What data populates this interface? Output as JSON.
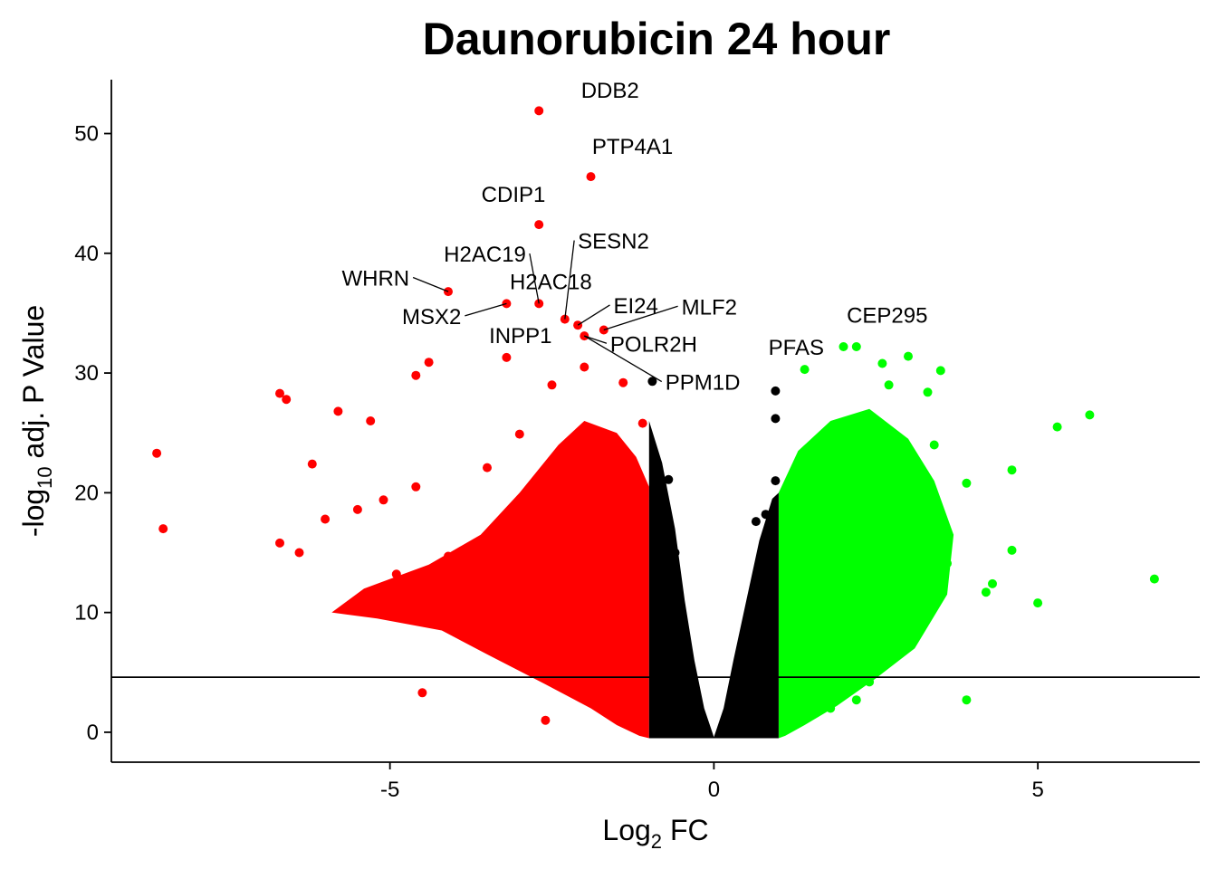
{
  "chart_data": {
    "type": "scatter",
    "title": "Daunorubicin 24 hour",
    "xlabel": {
      "base": "Log",
      "sub": "2",
      "rest": " FC"
    },
    "ylabel": {
      "pre": "-log",
      "sub": "10",
      "rest": " adj. P Value"
    },
    "xlim": [
      -9.3,
      7.5
    ],
    "ylim": [
      -2.5,
      54.5
    ],
    "x_ticks": [
      -5,
      0,
      5
    ],
    "x_tick_labels": [
      "-5",
      "0",
      "5"
    ],
    "y_ticks": [
      0,
      10,
      20,
      30,
      40,
      50
    ],
    "y_tick_labels": [
      "0",
      "10",
      "20",
      "30",
      "40",
      "50"
    ],
    "threshold_line_y": 4.6,
    "fc_thresholds": [
      -1,
      1
    ],
    "grid": false,
    "legend": "none",
    "colors": {
      "down": "#ff0000",
      "up": "#00ff00",
      "ns": "#000000"
    },
    "series": [
      {
        "name": "down",
        "color": "#ff0000",
        "points": [
          [
            -2.7,
            51.9
          ],
          [
            -1.9,
            46.4
          ],
          [
            -2.7,
            42.4
          ],
          [
            -4.1,
            36.8
          ],
          [
            -3.2,
            35.8
          ],
          [
            -2.7,
            35.8
          ],
          [
            -2.3,
            34.5
          ],
          [
            -2.1,
            34.0
          ],
          [
            -1.7,
            33.6
          ],
          [
            -2.0,
            33.1
          ],
          [
            -3.2,
            31.3
          ],
          [
            -8.6,
            23.3
          ],
          [
            -8.5,
            17.0
          ],
          [
            -6.7,
            28.3
          ],
          [
            -6.6,
            27.8
          ],
          [
            -6.7,
            15.8
          ],
          [
            -6.4,
            15.0
          ],
          [
            -6.2,
            22.4
          ],
          [
            -5.8,
            26.8
          ],
          [
            -5.3,
            26.0
          ],
          [
            -4.4,
            30.9
          ],
          [
            -4.6,
            29.8
          ],
          [
            -4.5,
            3.3
          ],
          [
            -2.0,
            30.5
          ],
          [
            -2.5,
            29.0
          ],
          [
            -1.4,
            29.2
          ],
          [
            -1.1,
            25.8
          ],
          [
            -3.5,
            22.1
          ],
          [
            -3.0,
            24.9
          ],
          [
            -4.6,
            20.5
          ],
          [
            -5.1,
            19.4
          ],
          [
            -5.5,
            18.6
          ],
          [
            -6.0,
            17.8
          ],
          [
            -4.9,
            13.2
          ],
          [
            -4.1,
            14.7
          ],
          [
            -3.6,
            11.3
          ],
          [
            -2.9,
            7.2
          ],
          [
            -2.3,
            5.0
          ],
          [
            -1.3,
            3.2
          ],
          [
            -1.6,
            1.8
          ],
          [
            -2.6,
            1.0
          ]
        ]
      },
      {
        "name": "up",
        "color": "#00ff00",
        "points": [
          [
            1.4,
            30.3
          ],
          [
            2.0,
            32.2
          ],
          [
            2.2,
            32.2
          ],
          [
            2.6,
            30.8
          ],
          [
            3.0,
            31.4
          ],
          [
            3.5,
            30.2
          ],
          [
            3.3,
            28.4
          ],
          [
            2.7,
            29.0
          ],
          [
            3.4,
            24.0
          ],
          [
            3.9,
            20.8
          ],
          [
            4.6,
            21.9
          ],
          [
            5.3,
            25.5
          ],
          [
            5.8,
            26.5
          ],
          [
            6.8,
            12.8
          ],
          [
            5.0,
            10.8
          ],
          [
            4.6,
            15.2
          ],
          [
            4.3,
            12.4
          ],
          [
            4.2,
            11.7
          ],
          [
            3.9,
            2.7
          ],
          [
            2.4,
            4.2
          ],
          [
            3.6,
            14.1
          ],
          [
            3.0,
            17.6
          ],
          [
            1.8,
            2.0
          ],
          [
            2.2,
            2.7
          ],
          [
            1.2,
            2.0
          ]
        ]
      },
      {
        "name": "ns",
        "color": "#000000",
        "points": [
          [
            -0.95,
            29.3
          ],
          [
            0.95,
            28.5
          ],
          [
            0.95,
            26.2
          ],
          [
            0.95,
            21.0
          ],
          [
            -0.7,
            21.1
          ],
          [
            -0.8,
            20.2
          ],
          [
            0.8,
            18.2
          ],
          [
            0.65,
            17.6
          ],
          [
            -0.6,
            15.0
          ]
        ]
      }
    ],
    "labels": [
      {
        "text": "DDB2",
        "point": [
          -2.7,
          51.9
        ],
        "label_at": [
          -2.05,
          53.0
        ],
        "anchor": "start"
      },
      {
        "text": "PTP4A1",
        "point": [
          -1.9,
          46.4
        ],
        "label_at": [
          -1.88,
          48.3
        ],
        "anchor": "start"
      },
      {
        "text": "CDIP1",
        "point": [
          -2.7,
          42.4
        ],
        "label_at": [
          -2.6,
          44.3
        ],
        "anchor": "end"
      },
      {
        "text": "SESN2",
        "point": [
          -2.3,
          34.5
        ],
        "label_at": [
          -2.1,
          40.4
        ],
        "anchor": "start",
        "leader": true
      },
      {
        "text": "H2AC19",
        "point": [
          -2.7,
          35.8
        ],
        "label_at": [
          -2.9,
          39.3
        ],
        "anchor": "end",
        "leader": true
      },
      {
        "text": "WHRN",
        "point": [
          -4.1,
          36.8
        ],
        "label_at": [
          -4.7,
          37.3
        ],
        "anchor": "end",
        "leader": true
      },
      {
        "text": "H2AC18",
        "point": [
          -2.7,
          35.8
        ],
        "label_at": [
          -3.15,
          37.0
        ],
        "anchor": "start"
      },
      {
        "text": "MSX2",
        "point": [
          -3.2,
          35.8
        ],
        "label_at": [
          -3.9,
          34.1
        ],
        "anchor": "end",
        "leader": true
      },
      {
        "text": "EI24",
        "point": [
          -2.1,
          34.0
        ],
        "label_at": [
          -1.55,
          35.0
        ],
        "anchor": "start",
        "leader": true
      },
      {
        "text": "MLF2",
        "point": [
          -1.7,
          33.6
        ],
        "label_at": [
          -0.5,
          34.9
        ],
        "anchor": "start",
        "leader": true
      },
      {
        "text": "INPP1",
        "point": [
          -3.2,
          31.3
        ],
        "label_at": [
          -2.5,
          32.5
        ],
        "anchor": "end"
      },
      {
        "text": "POLR2H",
        "point": [
          -2.0,
          33.1
        ],
        "label_at": [
          -1.6,
          31.8
        ],
        "anchor": "start",
        "leader": true
      },
      {
        "text": "PPM1D",
        "point": [
          -2.0,
          33.1
        ],
        "label_at": [
          -0.75,
          28.6
        ],
        "anchor": "start",
        "leader": true
      },
      {
        "text": "PFAS",
        "point": [
          1.4,
          30.3
        ],
        "label_at": [
          1.7,
          31.5
        ],
        "anchor": "end"
      },
      {
        "text": "CEP295",
        "point": [
          2.2,
          32.2
        ],
        "label_at": [
          2.05,
          34.2
        ],
        "anchor": "start"
      }
    ]
  }
}
